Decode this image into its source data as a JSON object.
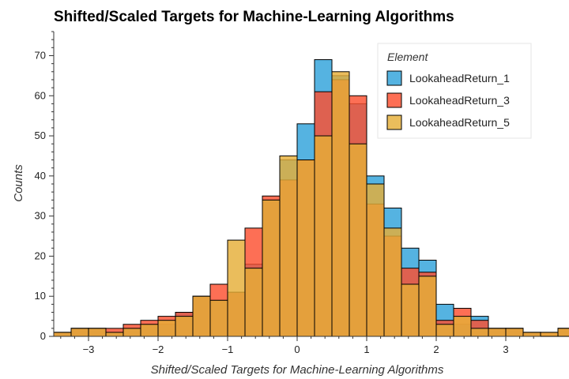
{
  "chart_data": {
    "type": "bar",
    "title": "Shifted/Scaled Targets for Machine-Learning Algorithms",
    "xlabel": "Shifted/Scaled Targets for Machine-Learning Algorithms",
    "ylabel": "Counts",
    "xlim": [
      -3.5,
      3.5
    ],
    "ylim": [
      0,
      76
    ],
    "xticks": [
      -3,
      -2,
      -1,
      0,
      1,
      2,
      3
    ],
    "xtick_labels": [
      "−3",
      "−2",
      "−1",
      "0",
      "1",
      "2",
      "3"
    ],
    "yticks": [
      0,
      10,
      20,
      30,
      40,
      50,
      60,
      70
    ],
    "grid": false,
    "legend": {
      "title": "Element",
      "placement": "top-right"
    },
    "bin_width": 0.25,
    "bin_edges_start": -3.5,
    "series": [
      {
        "name": "LookaheadReturn_1",
        "color": "#30a2da",
        "values": [
          1,
          2,
          2,
          1,
          2,
          3,
          3,
          6,
          10,
          9,
          11,
          18,
          34,
          44,
          53,
          69,
          65,
          58,
          40,
          32,
          22,
          19,
          8,
          3,
          5,
          2,
          2,
          1,
          0,
          2,
          2
        ]
      },
      {
        "name": "LookaheadReturn_3",
        "color": "#fc4f30",
        "values": [
          1,
          2,
          2,
          2,
          3,
          4,
          5,
          6,
          10,
          13,
          11,
          27,
          35,
          39,
          44,
          61,
          64,
          60,
          33,
          25,
          17,
          16,
          4,
          7,
          4,
          2,
          2,
          1,
          1,
          2,
          2
        ]
      },
      {
        "name": "LookaheadReturn_5",
        "color": "#e5ae38",
        "values": [
          1,
          2,
          2,
          1,
          2,
          3,
          4,
          5,
          10,
          9,
          24,
          17,
          34,
          45,
          44,
          50,
          66,
          48,
          38,
          27,
          13,
          15,
          3,
          5,
          2,
          2,
          2,
          1,
          1,
          2,
          2
        ]
      }
    ]
  }
}
